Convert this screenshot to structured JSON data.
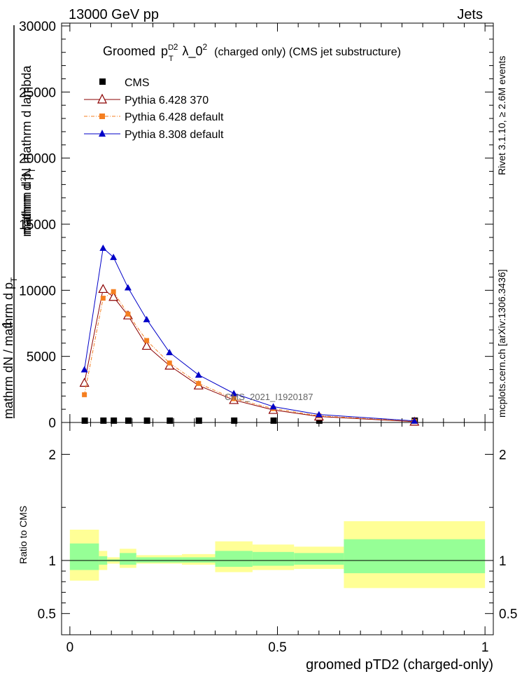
{
  "header": {
    "left": "13000 GeV pp",
    "right": "Jets"
  },
  "title": {
    "lead": "Groomed",
    "p": "p",
    "sup_d": "D",
    "sub_t": "T",
    "sup_2": "2",
    "lam": "λ_0",
    "sup_lam": "2",
    "rest": "(charged only) (CMS jet substructure)"
  },
  "side_labels": {
    "rivet": "Rivet 3.1.10, ≥ 2.6M events",
    "mcplots": "mcplots.cern.ch [arXiv:1306.3436]"
  },
  "watermark": "CMS_2021_I1920187",
  "ylabel_main": {
    "one": "1",
    "denominator": "mathrm dN / mathrm d p",
    "denominator_sub": "T",
    "numerator_a": "mathrm d",
    "numerator_sup": "2",
    "numerator_b": "N",
    "numerator_c": "mathrm d p",
    "numerator_sub": "T",
    "numerator_d": "mathrm d lambda"
  },
  "ylabel_ratio": "Ratio to CMS",
  "xlabel": "groomed pTD2 (charged-only)",
  "legend": [
    {
      "label": "CMS",
      "color": "#000000",
      "marker": "square-filled"
    },
    {
      "label": "Pythia 6.428 370",
      "color": "#8b0000",
      "marker": "triangle-open"
    },
    {
      "label": "Pythia 6.428 default",
      "color": "#f57f20",
      "marker": "square-filled",
      "dash": true
    },
    {
      "label": "Pythia 8.308 default",
      "color": "#0000c8",
      "marker": "triangle-filled"
    }
  ],
  "chart_data": {
    "type": "line",
    "main": {
      "xlim": [
        -0.02,
        1.02
      ],
      "ylim": [
        0,
        30000
      ],
      "yticks": [
        0,
        5000,
        10000,
        15000,
        20000,
        25000,
        30000
      ],
      "ytick_labels": [
        "0",
        "5000",
        "10000",
        "15000",
        "20000",
        "25000",
        "30000"
      ],
      "series": [
        {
          "name": "CMS",
          "x": [
            0.035,
            0.08,
            0.105,
            0.14,
            0.185,
            0.24,
            0.31,
            0.395,
            0.49,
            0.6,
            0.83
          ],
          "y": [
            60,
            60,
            60,
            60,
            60,
            60,
            60,
            60,
            60,
            60,
            60
          ]
        },
        {
          "name": "Pythia 6.428 370",
          "x": [
            0.035,
            0.08,
            0.105,
            0.14,
            0.185,
            0.24,
            0.31,
            0.395,
            0.49,
            0.6,
            0.83
          ],
          "y": [
            3000,
            10100,
            9500,
            8100,
            5800,
            4300,
            2800,
            1700,
            950,
            450,
            60
          ]
        },
        {
          "name": "Pythia 6.428 default",
          "x": [
            0.035,
            0.08,
            0.105,
            0.14,
            0.185,
            0.24,
            0.31,
            0.395,
            0.49,
            0.6,
            0.83
          ],
          "y": [
            2100,
            9400,
            9900,
            8200,
            6200,
            4500,
            2950,
            1800,
            1050,
            500,
            90
          ]
        },
        {
          "name": "Pythia 8.308 default",
          "x": [
            0.035,
            0.08,
            0.105,
            0.14,
            0.185,
            0.24,
            0.31,
            0.395,
            0.49,
            0.6,
            0.83
          ],
          "y": [
            4000,
            13200,
            12500,
            10200,
            7800,
            5300,
            3600,
            2200,
            1200,
            600,
            120
          ]
        }
      ]
    },
    "ratio": {
      "xlim": [
        -0.02,
        1.02
      ],
      "ylim": [
        0.3,
        2.3
      ],
      "yticks": [
        0.5,
        1,
        2
      ],
      "ytick_labels": [
        "0.5",
        "1",
        "2"
      ],
      "xticks": [
        0,
        0.5,
        1
      ],
      "xtick_labels": [
        "0",
        "0.5",
        "1"
      ],
      "bands": [
        {
          "x0": 0.0,
          "x1": 0.07,
          "yellow": [
            0.81,
            1.29
          ],
          "green": [
            0.91,
            1.16
          ]
        },
        {
          "x0": 0.07,
          "x1": 0.09,
          "yellow": [
            0.91,
            1.09
          ],
          "green": [
            0.96,
            1.04
          ]
        },
        {
          "x0": 0.09,
          "x1": 0.12,
          "yellow": [
            0.97,
            1.03
          ],
          "green": [
            0.99,
            1.01
          ]
        },
        {
          "x0": 0.12,
          "x1": 0.16,
          "yellow": [
            0.93,
            1.11
          ],
          "green": [
            0.96,
            1.07
          ]
        },
        {
          "x0": 0.16,
          "x1": 0.27,
          "yellow": [
            0.97,
            1.05
          ],
          "green": [
            0.98,
            1.03
          ]
        },
        {
          "x0": 0.27,
          "x1": 0.35,
          "yellow": [
            0.96,
            1.06
          ],
          "green": [
            0.98,
            1.03
          ]
        },
        {
          "x0": 0.35,
          "x1": 0.44,
          "yellow": [
            0.89,
            1.18
          ],
          "green": [
            0.94,
            1.09
          ]
        },
        {
          "x0": 0.44,
          "x1": 0.54,
          "yellow": [
            0.91,
            1.15
          ],
          "green": [
            0.95,
            1.08
          ]
        },
        {
          "x0": 0.54,
          "x1": 0.66,
          "yellow": [
            0.92,
            1.13
          ],
          "green": [
            0.96,
            1.07
          ]
        },
        {
          "x0": 0.66,
          "x1": 1.0,
          "yellow": [
            0.74,
            1.37
          ],
          "green": [
            0.88,
            1.2
          ]
        }
      ]
    },
    "xticks_main": [
      0,
      0.5,
      1
    ]
  }
}
